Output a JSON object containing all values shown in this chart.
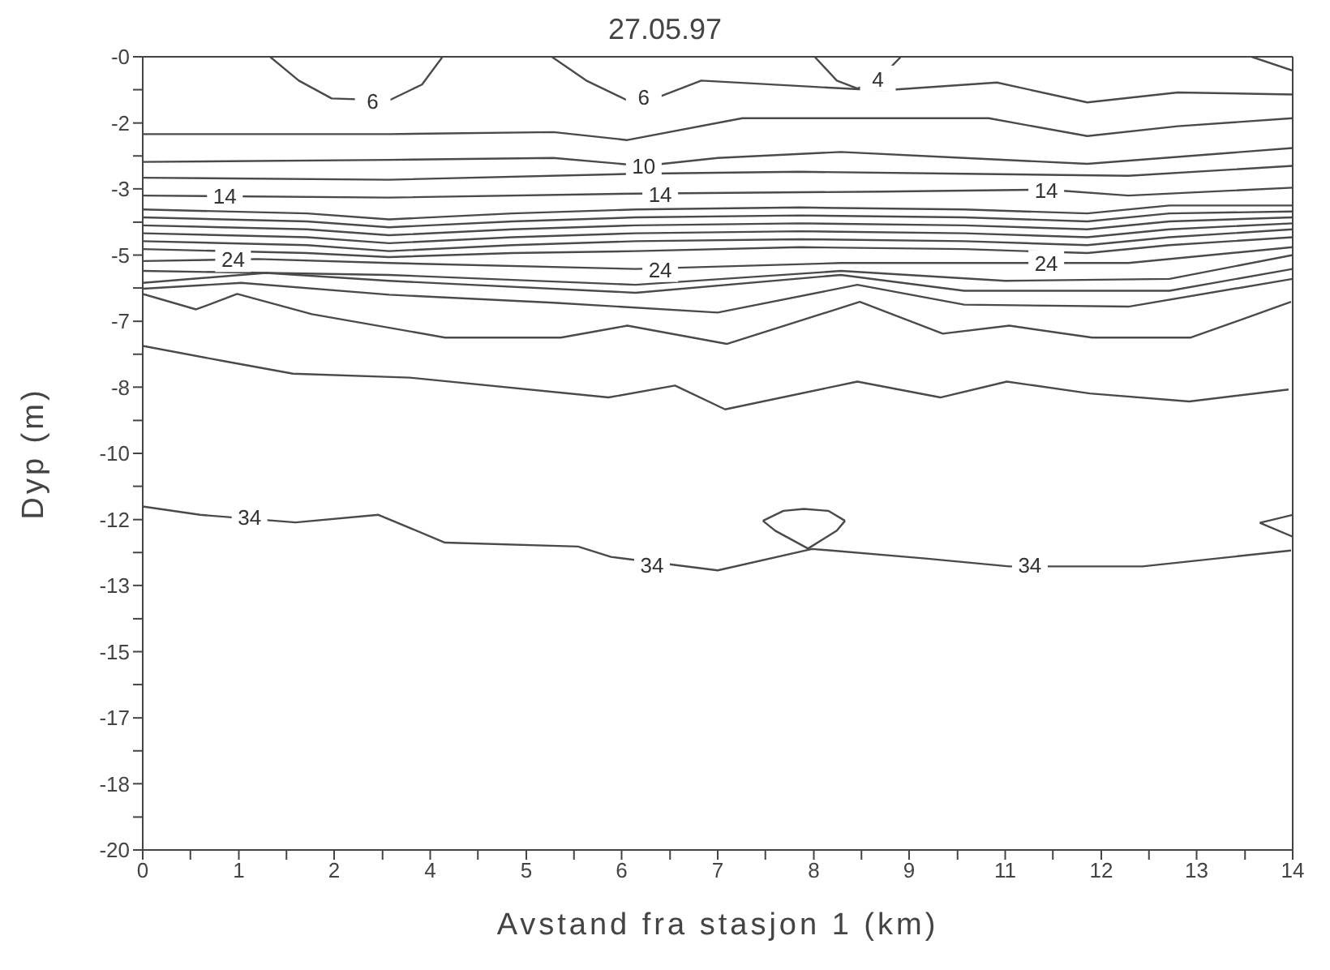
{
  "chart_data": {
    "type": "line",
    "title": "27.05.97",
    "xlabel": "Avstand fra stasjon 1 (km)",
    "ylabel": "Dyp (m)",
    "marker": "none",
    "line_style": "solid",
    "xlim": [
      0,
      14
    ],
    "ylim": [
      -20,
      0
    ],
    "xticks": [
      0,
      {
        "value": 0.58,
        "label": null
      },
      {
        "value": 1.17,
        "label": "1"
      },
      {
        "value": 1.75,
        "label": null
      },
      {
        "value": 2.33,
        "label": "2"
      },
      {
        "value": 2.92,
        "label": null
      },
      {
        "value": 3.5,
        "label": "4"
      },
      {
        "value": 4.08,
        "label": null
      },
      {
        "value": 4.67,
        "label": "5"
      },
      {
        "value": 5.25,
        "label": null
      },
      {
        "value": 5.83,
        "label": "6"
      },
      {
        "value": 6.42,
        "label": null
      },
      {
        "value": 7,
        "label": "7"
      },
      {
        "value": 7.58,
        "label": null
      },
      {
        "value": 8.17,
        "label": "8"
      },
      {
        "value": 8.75,
        "label": null
      },
      {
        "value": 9.33,
        "label": "9"
      },
      {
        "value": 9.92,
        "label": null
      },
      {
        "value": 10.5,
        "label": "11"
      },
      {
        "value": 11.08,
        "label": null
      },
      {
        "value": 11.67,
        "label": "12"
      },
      {
        "value": 12.25,
        "label": null
      },
      {
        "value": 12.83,
        "label": "13"
      },
      {
        "value": 13.42,
        "label": null
      },
      {
        "value": 14,
        "label": "14"
      }
    ],
    "yticks": [
      {
        "value": 0,
        "label": "-0"
      },
      {
        "value": -0.83,
        "label": null
      },
      {
        "value": -1.67,
        "label": "-2"
      },
      {
        "value": -2.5,
        "label": null
      },
      {
        "value": -3.33,
        "label": "-3"
      },
      {
        "value": -4.17,
        "label": null
      },
      {
        "value": -5,
        "label": "-5"
      },
      {
        "value": -5.83,
        "label": null
      },
      {
        "value": -6.67,
        "label": "-7"
      },
      {
        "value": -7.5,
        "label": null
      },
      {
        "value": -8.33,
        "label": "-8"
      },
      {
        "value": -9.17,
        "label": null
      },
      {
        "value": -10,
        "label": "-10"
      },
      {
        "value": -10.83,
        "label": null
      },
      {
        "value": -11.67,
        "label": "-12"
      },
      {
        "value": -12.5,
        "label": null
      },
      {
        "value": -13.33,
        "label": "-13"
      },
      {
        "value": -14.17,
        "label": null
      },
      {
        "value": -15,
        "label": "-15"
      },
      {
        "value": -15.83,
        "label": null
      },
      {
        "value": -16.67,
        "label": "-17"
      },
      {
        "value": -17.5,
        "label": null
      },
      {
        "value": -18.33,
        "label": "-18"
      },
      {
        "value": -19.17,
        "label": null
      },
      {
        "value": -20,
        "label": "-20"
      }
    ],
    "series": [
      {
        "color": "#4a4a4a",
        "x": [
          1.55,
          1.9,
          2.3,
          3.0,
          3.4,
          3.65
        ],
        "values": [
          0,
          -0.6,
          -1.05,
          -1.1,
          -0.7,
          0
        ]
      },
      {
        "color": "#4a4a4a",
        "x": [
          4.98,
          5.4,
          5.9,
          6.3,
          6.8,
          8.1,
          9.0,
          10.4,
          11.5,
          12.6,
          14
        ],
        "values": [
          0,
          -0.6,
          -1.1,
          -1.0,
          -0.6,
          -0.75,
          -0.85,
          -0.65,
          -1.15,
          -0.9,
          -0.95
        ]
      },
      {
        "color": "#4a4a4a",
        "x": [
          8.18,
          8.45,
          8.7,
          8.95,
          9.23
        ],
        "values": [
          0,
          -0.6,
          -0.8,
          -0.6,
          0
        ]
      },
      {
        "color": "#4a4a4a",
        "x": [
          13.5,
          14
        ],
        "values": [
          0,
          -0.35
        ]
      },
      {
        "color": "#4a4a4a",
        "x": [
          0,
          3,
          5,
          5.9,
          7.3,
          10.3,
          11.5,
          12.6,
          14
        ],
        "values": [
          -1.95,
          -1.95,
          -1.9,
          -2.1,
          -1.55,
          -1.55,
          -2.0,
          -1.75,
          -1.55
        ]
      },
      {
        "color": "#4a4a4a",
        "x": [
          0,
          3,
          5,
          6.1,
          7,
          8.5,
          10,
          11.5,
          14
        ],
        "values": [
          -2.65,
          -2.6,
          -2.55,
          -2.75,
          -2.55,
          -2.4,
          -2.55,
          -2.7,
          -2.3
        ]
      },
      {
        "color": "#4a4a4a",
        "x": [
          0,
          3,
          6,
          8,
          10,
          12,
          14
        ],
        "values": [
          -3.05,
          -3.1,
          -2.95,
          -2.9,
          -2.95,
          -3.0,
          -2.75
        ]
      },
      {
        "color": "#4a4a4a",
        "x": [
          0,
          3,
          6,
          9,
          11,
          12,
          14
        ],
        "values": [
          -3.5,
          -3.55,
          -3.45,
          -3.4,
          -3.35,
          -3.5,
          -3.3
        ]
      },
      {
        "color": "#4a4a4a",
        "x": [
          0,
          2,
          3,
          4.5,
          6,
          8,
          10,
          11.5,
          12.5,
          14
        ],
        "values": [
          -3.85,
          -3.95,
          -4.1,
          -3.95,
          -3.85,
          -3.8,
          -3.85,
          -3.95,
          -3.75,
          -3.75
        ]
      },
      {
        "color": "#4a4a4a",
        "x": [
          0,
          2,
          3,
          4.5,
          6,
          8,
          10,
          11.5,
          12.5,
          14
        ],
        "values": [
          -4.05,
          -4.15,
          -4.3,
          -4.15,
          -4.05,
          -4.0,
          -4.05,
          -4.15,
          -3.95,
          -3.9
        ]
      },
      {
        "color": "#4a4a4a",
        "x": [
          0,
          2,
          3,
          4.5,
          6,
          8,
          10,
          11.5,
          12.5,
          14
        ],
        "values": [
          -4.25,
          -4.35,
          -4.5,
          -4.35,
          -4.25,
          -4.2,
          -4.25,
          -4.35,
          -4.15,
          -4.05
        ]
      },
      {
        "color": "#4a4a4a",
        "x": [
          0,
          2,
          3,
          4.5,
          6,
          8,
          10,
          11.5,
          12.5,
          14
        ],
        "values": [
          -4.45,
          -4.55,
          -4.7,
          -4.55,
          -4.45,
          -4.4,
          -4.45,
          -4.55,
          -4.35,
          -4.2
        ]
      },
      {
        "color": "#4a4a4a",
        "x": [
          0,
          2,
          3,
          4.5,
          6,
          8,
          10,
          11.5,
          12.5,
          14
        ],
        "values": [
          -4.65,
          -4.75,
          -4.9,
          -4.75,
          -4.65,
          -4.6,
          -4.65,
          -4.75,
          -4.55,
          -4.35
        ]
      },
      {
        "color": "#4a4a4a",
        "x": [
          0,
          2,
          3,
          4.5,
          6,
          8,
          10,
          11.5,
          12.5,
          14
        ],
        "values": [
          -4.85,
          -4.95,
          -5.05,
          -4.95,
          -4.9,
          -4.8,
          -4.85,
          -4.95,
          -4.75,
          -4.55
        ]
      },
      {
        "color": "#4a4a4a",
        "x": [
          0,
          1.4,
          3,
          6,
          8.5,
          11,
          12,
          14
        ],
        "values": [
          -5.15,
          -5.1,
          -5.2,
          -5.35,
          -5.2,
          -5.2,
          -5.2,
          -4.8
        ]
      },
      {
        "color": "#4a4a4a",
        "x": [
          0,
          3,
          6,
          8.5,
          10.5,
          12.5,
          14
        ],
        "values": [
          -5.4,
          -5.5,
          -5.75,
          -5.4,
          -5.65,
          -5.6,
          -5.0
        ]
      },
      {
        "color": "#4a4a4a",
        "x": [
          0,
          1.5,
          3,
          6,
          8.5,
          10,
          12.5,
          14
        ],
        "values": [
          -5.7,
          -5.45,
          -5.65,
          -5.95,
          -5.5,
          -5.9,
          -5.9,
          -5.35
        ]
      },
      {
        "color": "#4a4a4a",
        "x": [
          0,
          1.2,
          3,
          5,
          7,
          8.7,
          10,
          12,
          14
        ],
        "values": [
          -5.85,
          -5.7,
          -6.0,
          -6.2,
          -6.45,
          -5.75,
          -6.25,
          -6.3,
          -5.6
        ]
      },
      {
        "color": "#4a4a4a",
        "x": [
          0,
          0.65,
          1.15,
          2.06,
          3.68,
          5.09,
          5.9,
          7.11,
          8.73,
          9.74,
          10.55,
          11.56,
          12.76,
          13.98
        ],
        "values": [
          -5.98,
          -6.37,
          -5.98,
          -6.49,
          -7.08,
          -7.08,
          -6.78,
          -7.24,
          -6.18,
          -6.98,
          -6.78,
          -7.08,
          -7.08,
          -6.18
        ]
      },
      {
        "color": "#4a4a4a",
        "x": [
          0,
          1.03,
          1.83,
          3.25,
          5.67,
          6.48,
          7.09,
          8.7,
          9.71,
          10.52,
          11.53,
          12.74,
          13.95
        ],
        "values": [
          -7.29,
          -7.69,
          -7.99,
          -8.09,
          -8.59,
          -8.29,
          -8.89,
          -8.19,
          -8.59,
          -8.19,
          -8.49,
          -8.69,
          -8.39
        ]
      },
      {
        "color": "#4a4a4a",
        "x": [
          0,
          0.7,
          1.86,
          2.87,
          3.68,
          5.3,
          5.7,
          7.0,
          8.15,
          9.53,
          10.55,
          12.17,
          13.98
        ],
        "values": [
          -11.34,
          -11.55,
          -11.74,
          -11.55,
          -12.25,
          -12.35,
          -12.61,
          -12.95,
          -12.41,
          -12.65,
          -12.85,
          -12.85,
          -12.45
        ]
      },
      {
        "color": "#4a4a4a",
        "x": [
          7.55,
          7.7,
          8.1,
          8.45,
          8.55
        ],
        "values": [
          -11.7,
          -11.95,
          -12.4,
          -11.95,
          -11.7
        ]
      },
      {
        "color": "#4a4a4a",
        "x": [
          7.55,
          7.8,
          8.05,
          8.35,
          8.55
        ],
        "values": [
          -11.7,
          -11.45,
          -11.4,
          -11.45,
          -11.7
        ]
      },
      {
        "color": "#4a4a4a",
        "x": [
          13.6,
          14
        ],
        "values": [
          -11.75,
          -11.55
        ]
      },
      {
        "color": "#4a4a4a",
        "x": [
          13.6,
          14
        ],
        "values": [
          -11.75,
          -12.1
        ]
      }
    ],
    "annotations": [
      {
        "text": "6",
        "x": 2.8,
        "y": -1.1
      },
      {
        "text": "6",
        "x": 6.1,
        "y": -1.0
      },
      {
        "text": "4",
        "x": 8.95,
        "y": -0.55
      },
      {
        "text": "10",
        "x": 6.1,
        "y": -2.75
      },
      {
        "text": "14",
        "x": 1.0,
        "y": -3.5
      },
      {
        "text": "14",
        "x": 6.3,
        "y": -3.45
      },
      {
        "text": "14",
        "x": 11.0,
        "y": -3.35
      },
      {
        "text": "24",
        "x": 1.1,
        "y": -5.1
      },
      {
        "text": "24",
        "x": 6.3,
        "y": -5.35
      },
      {
        "text": "24",
        "x": 11.0,
        "y": -5.2
      },
      {
        "text": "34",
        "x": 1.3,
        "y": -11.6
      },
      {
        "text": "34",
        "x": 6.2,
        "y": -12.8
      },
      {
        "text": "34",
        "x": 10.8,
        "y": -12.8
      }
    ]
  }
}
